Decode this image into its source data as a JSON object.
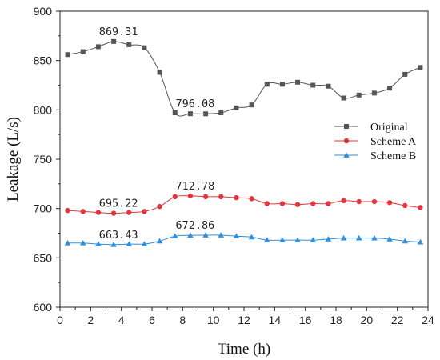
{
  "chart_data": {
    "type": "line",
    "xlabel": "Time (h)",
    "ylabel": "Leakage (L/s)",
    "xlim": [
      0,
      24
    ],
    "ylim": [
      600,
      900
    ],
    "xticks": [
      0,
      2,
      4,
      6,
      8,
      10,
      12,
      14,
      16,
      18,
      20,
      22,
      24
    ],
    "yticks": [
      600,
      650,
      700,
      750,
      800,
      850,
      900
    ],
    "grid": false,
    "legend_position": "right-middle",
    "x": [
      0.5,
      1.5,
      2.5,
      3.5,
      4.5,
      5.5,
      6.5,
      7.5,
      8.5,
      9.5,
      10.5,
      11.5,
      12.5,
      13.5,
      14.5,
      15.5,
      16.5,
      17.5,
      18.5,
      19.5,
      20.5,
      21.5,
      22.5,
      23.5
    ],
    "series": [
      {
        "name": "Original",
        "color": "#555555",
        "marker": "square",
        "values": [
          856,
          859,
          864,
          869.31,
          866,
          863,
          838,
          797,
          796.08,
          796,
          797,
          802,
          805,
          826,
          826,
          828,
          825,
          824,
          812,
          815,
          817,
          822,
          836,
          843
        ]
      },
      {
        "name": "Scheme A",
        "color": "#e0383e",
        "marker": "circle",
        "values": [
          698,
          697,
          696,
          695.22,
          696,
          697,
          702,
          712,
          712.78,
          712,
          712,
          711,
          710,
          705,
          705,
          704,
          705,
          705,
          708,
          707,
          707,
          706,
          703,
          701
        ]
      },
      {
        "name": "Scheme B",
        "color": "#2f8fdc",
        "marker": "triangle",
        "values": [
          665,
          665,
          664,
          663.43,
          664,
          664,
          667,
          672,
          672.86,
          673,
          673,
          672,
          671,
          668,
          668,
          668,
          668,
          669,
          670,
          670,
          670,
          669,
          667,
          666
        ]
      }
    ],
    "annotations": [
      {
        "text": "869.31",
        "x": 3.5,
        "y": 869.31
      },
      {
        "text": "796.08",
        "x": 8.5,
        "y": 796.08
      },
      {
        "text": "712.78",
        "x": 8.5,
        "y": 712.78
      },
      {
        "text": "695.22",
        "x": 3.5,
        "y": 695.22
      },
      {
        "text": "672.86",
        "x": 8.5,
        "y": 672.86
      },
      {
        "text": "663.43",
        "x": 3.5,
        "y": 663.43
      }
    ]
  }
}
